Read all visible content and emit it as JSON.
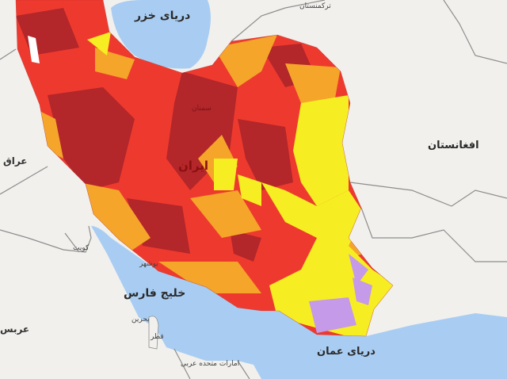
{
  "labels": {
    "caspian": "دریای خزر",
    "turkmenistan": "ترکمنستان",
    "afghanistan": "افغانستان",
    "iraq": "عراق",
    "iran": "ایران",
    "semnan": "سمنان",
    "kuwait": "کویت",
    "bushehr": "بوشهر",
    "persian_gulf": "خلیج فارس",
    "bahrain": "بحرین",
    "saudi": "عربس",
    "qatar": "قطر",
    "uae": "امارات متحده عربی",
    "oman_sea": "دریای عمان"
  },
  "colors": {
    "land": "#f1f0ed",
    "water": "#a9cdf2",
    "border": "#8d8d8d",
    "dark_red": "#b3262a",
    "red": "#ee3a2e",
    "orange": "#f5a52a",
    "yellow": "#f6ee22",
    "purple": "#c59ae8"
  }
}
